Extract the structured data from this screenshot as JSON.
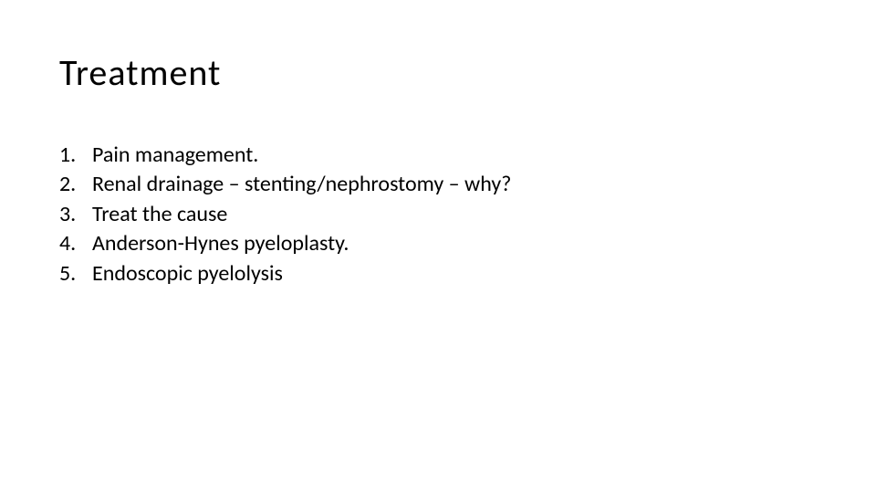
{
  "slide": {
    "title": "Treatment",
    "title_fontsize": 40,
    "title_color": "#000000",
    "background_color": "#ffffff",
    "list_fontsize": 24,
    "list_color": "#000000",
    "items": [
      {
        "number": "1.",
        "text": "Pain management."
      },
      {
        "number": "2.",
        "text": "Renal drainage – stenting/nephrostomy – why?"
      },
      {
        "number": "3.",
        "text": "Treat the cause"
      },
      {
        "number": "4.",
        "text": "Anderson-Hynes pyeloplasty."
      },
      {
        "number": "5.",
        "text": "Endoscopic pyelolysis"
      }
    ]
  }
}
